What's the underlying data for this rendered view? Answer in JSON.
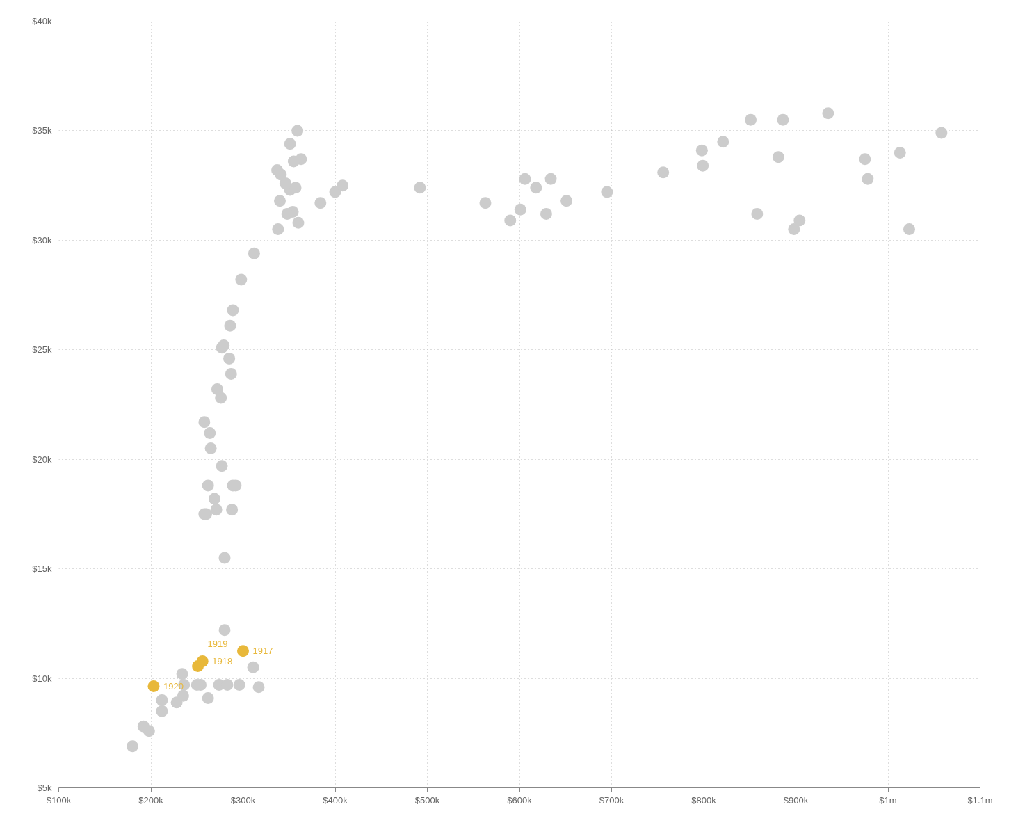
{
  "chart_data": {
    "type": "scatter",
    "xlim": [
      100000,
      1100000
    ],
    "ylim": [
      5000,
      40000
    ],
    "xticks": [
      {
        "value": 100000,
        "label": "$100k"
      },
      {
        "value": 200000,
        "label": "$200k"
      },
      {
        "value": 300000,
        "label": "$300k"
      },
      {
        "value": 400000,
        "label": "$400k"
      },
      {
        "value": 500000,
        "label": "$500k"
      },
      {
        "value": 600000,
        "label": "$600k"
      },
      {
        "value": 700000,
        "label": "$700k"
      },
      {
        "value": 800000,
        "label": "$800k"
      },
      {
        "value": 900000,
        "label": "$900k"
      },
      {
        "value": 1000000,
        "label": "$1m"
      },
      {
        "value": 1100000,
        "label": "$1.1m"
      }
    ],
    "yticks": [
      {
        "value": 5000,
        "label": "$5k"
      },
      {
        "value": 10000,
        "label": "$10k"
      },
      {
        "value": 15000,
        "label": "$15k"
      },
      {
        "value": 20000,
        "label": "$20k"
      },
      {
        "value": 25000,
        "label": "$25k"
      },
      {
        "value": 30000,
        "label": "$30k"
      },
      {
        "value": 35000,
        "label": "$35k"
      },
      {
        "value": 40000,
        "label": "$40k"
      }
    ],
    "grid": true,
    "marker": "circle",
    "series": [
      {
        "color": "#cccccc",
        "x": [
          180000,
          192000,
          198000,
          212000,
          212000,
          228000,
          234000,
          236000,
          235000,
          250000,
          254000,
          262000,
          274000,
          283000,
          296000,
          317000,
          311000,
          280000,
          280000,
          260000,
          258000,
          271000,
          288000,
          262000,
          269000,
          289000,
          292000,
          277000,
          265000,
          264000,
          258000,
          276000,
          272000,
          287000,
          285000,
          277000,
          279000,
          286000,
          289000,
          298000,
          312000,
          338000,
          360000,
          354000,
          348000,
          340000,
          351000,
          357000,
          346000,
          341000,
          337000,
          363000,
          355000,
          351000,
          359000,
          384000,
          400000,
          408000,
          492000,
          563000,
          590000,
          601000,
          606000,
          618000,
          629000,
          634000,
          651000,
          695000,
          756000,
          798000,
          799000,
          821000,
          851000,
          858000,
          881000,
          886000,
          898000,
          904000,
          935000,
          975000,
          978000,
          1013000,
          1023000,
          1058000
        ],
        "values": [
          6900,
          7800,
          7600,
          9000,
          8500,
          8900,
          10200,
          9700,
          9200,
          9700,
          9700,
          9100,
          9700,
          9700,
          9700,
          9600,
          10500,
          12200,
          15500,
          17500,
          17500,
          17700,
          17700,
          18800,
          18200,
          18800,
          18800,
          19700,
          20500,
          21200,
          21700,
          22800,
          23200,
          23900,
          24600,
          25100,
          25200,
          26100,
          26800,
          28200,
          29400,
          30500,
          30800,
          31300,
          31200,
          31800,
          32300,
          32400,
          32600,
          33000,
          33200,
          33700,
          33600,
          34400,
          35000,
          31700,
          32200,
          32500,
          32400,
          31700,
          30900,
          31400,
          32800,
          32400,
          31200,
          32800,
          31800,
          32200,
          33100,
          34100,
          33400,
          34500,
          35500,
          31200,
          33800,
          35500,
          30500,
          30900,
          35800,
          33700,
          32800,
          34000,
          30500,
          34900
        ]
      },
      {
        "color": "#e8b83a",
        "x": [
          300000,
          256000,
          251000,
          203000
        ],
        "values": [
          11250,
          10780,
          10560,
          9640
        ]
      }
    ],
    "annotations": [
      {
        "text": "1917",
        "x": 300000,
        "y": 11250
      },
      {
        "text": "1918",
        "x": 256000,
        "y": 10780
      },
      {
        "text": "1919",
        "x": 251000,
        "y": 10560
      },
      {
        "text": "1920",
        "x": 203000,
        "y": 9640
      }
    ]
  }
}
